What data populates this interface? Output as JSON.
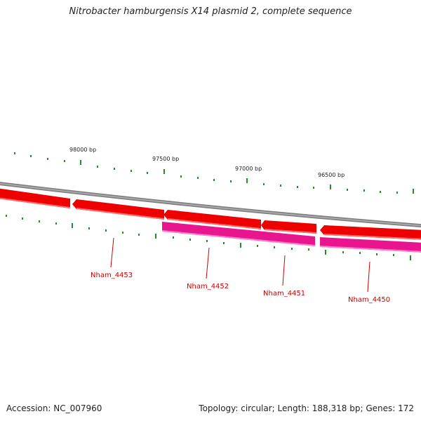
{
  "title": "Nitrobacter hamburgensis X14 plasmid 2, complete sequence",
  "footer": {
    "accession": "Accession: NC_007960",
    "summary": "Topology: circular; Length: 188,318 bp; Genes: 172"
  },
  "ruler": {
    "labels": [
      "98000 bp",
      "97500 bp",
      "97000 bp",
      "96500 bp"
    ]
  },
  "genes": {
    "labels": [
      "Nham_4453",
      "Nham_4452",
      "Nham_4451",
      "Nham_4450"
    ]
  },
  "colors": {
    "backbone": "#808080",
    "forward_strand": "#ee0000",
    "reverse_strand": "#e8158f",
    "ticks": "#2a8a2a",
    "label": "#cc0000"
  }
}
